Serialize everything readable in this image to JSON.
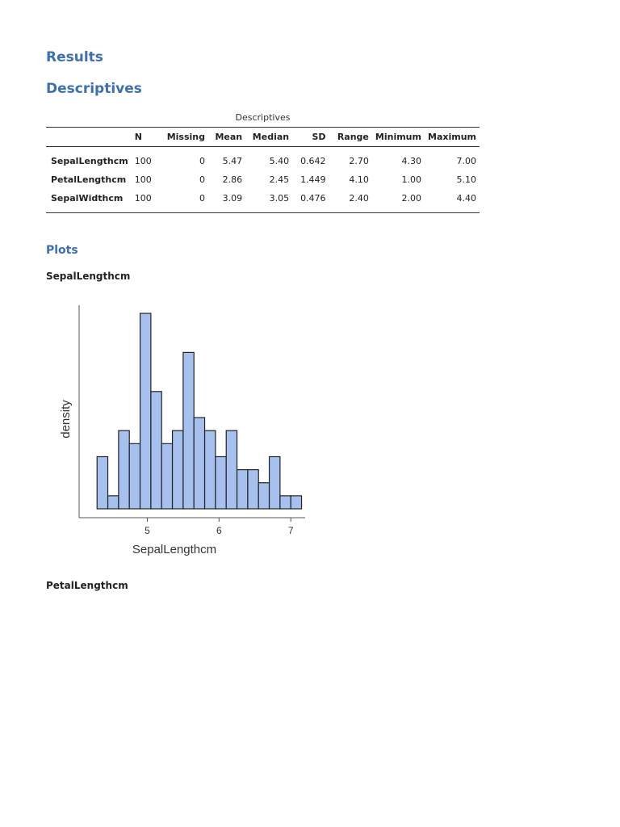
{
  "headings": {
    "results": "Results",
    "descriptives": "Descriptives",
    "plots": "Plots"
  },
  "table": {
    "caption": "Descriptives",
    "columns": [
      "",
      "N",
      "Missing",
      "Mean",
      "Median",
      "SD",
      "Range",
      "Minimum",
      "Maximum"
    ],
    "rows": [
      [
        "SepalLengthcm",
        "100",
        "0",
        "5.47",
        "5.40",
        "0.642",
        "2.70",
        "4.30",
        "7.00"
      ],
      [
        "PetalLengthcm",
        "100",
        "0",
        "2.86",
        "2.45",
        "1.449",
        "4.10",
        "1.00",
        "5.10"
      ],
      [
        "SepalWidthcm",
        "100",
        "0",
        "3.09",
        "3.05",
        "0.476",
        "2.40",
        "2.00",
        "4.40"
      ]
    ]
  },
  "plots": {
    "sepal_title": "SepalLengthcm",
    "petal_title": "PetalLengthcm"
  },
  "chart_data": {
    "type": "bar",
    "subtype": "histogram",
    "title": "",
    "xlabel": "SepalLengthcm",
    "ylabel": "density",
    "x_ticks": [
      5,
      6,
      7
    ],
    "bin_width": 0.15,
    "bins_start": 4.3,
    "xlim": [
      4.05,
      7.2
    ],
    "counts": [
      4,
      1,
      6,
      5,
      15,
      9,
      5,
      6,
      12,
      7,
      6,
      4,
      6,
      3,
      3,
      2,
      4,
      1,
      1
    ],
    "colors": {
      "fill": "#a6c1ed",
      "stroke": "#222222"
    }
  }
}
